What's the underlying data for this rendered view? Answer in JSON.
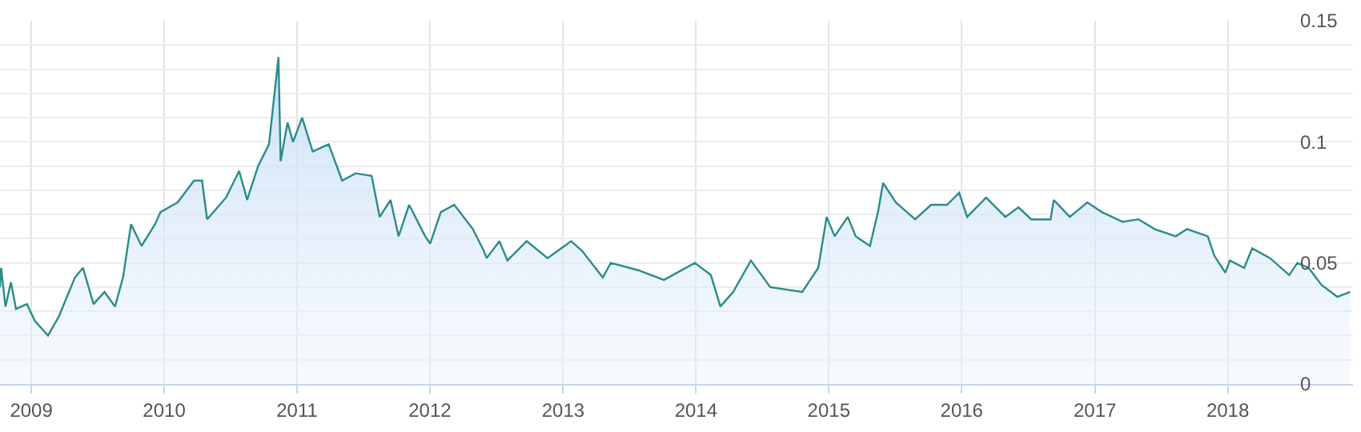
{
  "chart_data": {
    "type": "area",
    "xlim": [
      "2008-10-07",
      "2018-12-11"
    ],
    "ylim": [
      0,
      0.15
    ],
    "xticks": [
      "2009",
      "2010",
      "2011",
      "2012",
      "2013",
      "2014",
      "2015",
      "2016",
      "2017",
      "2018"
    ],
    "yticks": [
      0,
      {
        "value": 0.01,
        "label": null
      },
      {
        "value": 0.02,
        "label": null
      },
      {
        "value": 0.03,
        "label": null
      },
      {
        "value": 0.04,
        "label": null
      },
      0.05,
      {
        "value": 0.06,
        "label": null
      },
      {
        "value": 0.07,
        "label": null
      },
      {
        "value": 0.08,
        "label": null
      },
      {
        "value": 0.09,
        "label": null
      },
      0.1,
      {
        "value": 0.11,
        "label": null
      },
      {
        "value": 0.12,
        "label": null
      },
      {
        "value": 0.13,
        "label": null
      },
      {
        "value": 0.14,
        "label": null
      },
      0.15
    ],
    "grid": true,
    "marker": "none",
    "line_style": "solid",
    "x": [
      "2008-10-07",
      "2008-10-10",
      "2008-10-22",
      "2008-11-06",
      "2008-11-20",
      "2008-12-20",
      "2009-01-11",
      "2009-02-16",
      "2009-03-18",
      "2009-05-01",
      "2009-05-23",
      "2009-06-21",
      "2009-07-21",
      "2009-08-19",
      "2009-09-10",
      "2009-10-02",
      "2009-10-31",
      "2009-12-07",
      "2009-12-22",
      "2010-02-07",
      "2010-03-24",
      "2010-04-15",
      "2010-04-29",
      "2010-06-20",
      "2010-07-26",
      "2010-08-17",
      "2010-09-16",
      "2010-10-16",
      "2010-11-11",
      "2010-11-17",
      "2010-12-06",
      "2010-12-21",
      "2011-01-15",
      "2011-02-13",
      "2011-03-29",
      "2011-05-05",
      "2011-06-11",
      "2011-07-25",
      "2011-08-16",
      "2011-09-15",
      "2011-10-07",
      "2011-11-05",
      "2011-12-19",
      "2012-01-02",
      "2012-01-31",
      "2012-03-08",
      "2012-04-28",
      "2012-05-28",
      "2012-06-05",
      "2012-07-10",
      "2012-08-01",
      "2012-09-23",
      "2012-11-19",
      "2013-01-23",
      "2013-02-22",
      "2013-04-20",
      "2013-05-12",
      "2013-07-26",
      "2013-10-05",
      "2013-12-29",
      "2014-02-11",
      "2014-03-09",
      "2014-04-13",
      "2014-06-01",
      "2014-07-24",
      "2014-10-20",
      "2014-12-03",
      "2014-12-26",
      "2015-01-17",
      "2015-02-22",
      "2015-03-16",
      "2015-04-24",
      "2015-05-16",
      "2015-05-30",
      "2015-07-04",
      "2015-08-26",
      "2015-10-09",
      "2015-11-22",
      "2015-12-25",
      "2016-01-16",
      "2016-03-08",
      "2016-04-30",
      "2016-06-05",
      "2016-07-10",
      "2016-09-01",
      "2016-09-10",
      "2016-10-24",
      "2016-12-11",
      "2017-01-20",
      "2017-03-18",
      "2017-05-01",
      "2017-06-14",
      "2017-08-11",
      "2017-09-11",
      "2017-11-07",
      "2017-11-25",
      "2017-12-25",
      "2018-01-07",
      "2018-02-15",
      "2018-03-09",
      "2018-04-27",
      "2018-06-19",
      "2018-07-11",
      "2018-08-11",
      "2018-09-15",
      "2018-10-29",
      "2018-12-03"
    ],
    "series": [
      {
        "color": "#2a8c88",
        "values": [
          0.04,
          0.048,
          0.032,
          0.042,
          0.031,
          0.033,
          0.026,
          0.02,
          0.028,
          0.044,
          0.048,
          0.033,
          0.038,
          0.032,
          0.044,
          0.066,
          0.057,
          0.066,
          0.071,
          0.075,
          0.084,
          0.084,
          0.068,
          0.077,
          0.088,
          0.076,
          0.09,
          0.099,
          0.135,
          0.092,
          0.108,
          0.1,
          0.11,
          0.096,
          0.099,
          0.084,
          0.087,
          0.086,
          0.069,
          0.076,
          0.061,
          0.074,
          0.061,
          0.058,
          0.071,
          0.074,
          0.064,
          0.055,
          0.052,
          0.059,
          0.051,
          0.059,
          0.052,
          0.059,
          0.055,
          0.044,
          0.05,
          0.047,
          0.043,
          0.05,
          0.045,
          0.032,
          0.038,
          0.051,
          0.04,
          0.038,
          0.048,
          0.069,
          0.061,
          0.069,
          0.061,
          0.057,
          0.071,
          0.083,
          0.075,
          0.068,
          0.074,
          0.074,
          0.079,
          0.069,
          0.077,
          0.069,
          0.073,
          0.068,
          0.068,
          0.076,
          0.069,
          0.075,
          0.071,
          0.067,
          0.068,
          0.064,
          0.061,
          0.064,
          0.061,
          0.053,
          0.046,
          0.051,
          0.048,
          0.056,
          0.052,
          0.045,
          0.05,
          0.048,
          0.041,
          0.036,
          0.038
        ]
      }
    ]
  }
}
